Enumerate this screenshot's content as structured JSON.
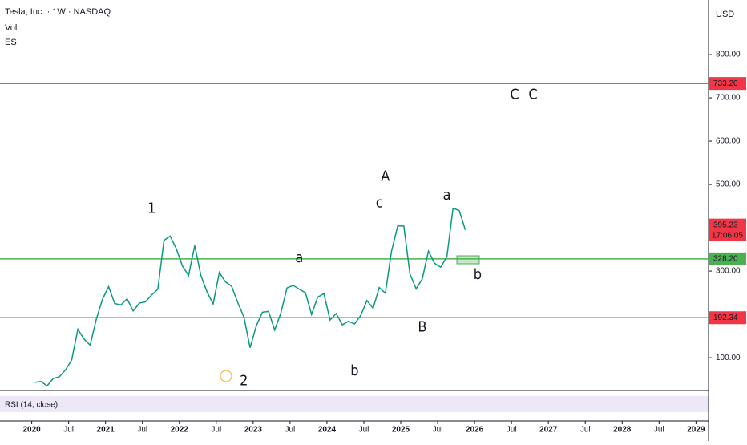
{
  "header": {
    "symbol": "Tesla, Inc. · 1W · NASDAQ",
    "indicators": [
      "Vol",
      "ES"
    ],
    "currency": "USD"
  },
  "chart_data": {
    "type": "line",
    "color": "#089981",
    "x": [
      "2020-01",
      "2020-02",
      "2020-03",
      "2020-04",
      "2020-05",
      "2020-06",
      "2020-07",
      "2020-08",
      "2020-09",
      "2020-10",
      "2020-11",
      "2020-12",
      "2021-01",
      "2021-02",
      "2021-03",
      "2021-04",
      "2021-05",
      "2021-06",
      "2021-07",
      "2021-08",
      "2021-09",
      "2021-10",
      "2021-11",
      "2021-12",
      "2022-01",
      "2022-02",
      "2022-03",
      "2022-04",
      "2022-05",
      "2022-06",
      "2022-07",
      "2022-08",
      "2022-09",
      "2022-10",
      "2022-11",
      "2022-12",
      "2023-01",
      "2023-02",
      "2023-03",
      "2023-04",
      "2023-05",
      "2023-06",
      "2023-07",
      "2023-08",
      "2023-09",
      "2023-10",
      "2023-11",
      "2023-12",
      "2024-01",
      "2024-02",
      "2024-03",
      "2024-04",
      "2024-05",
      "2024-06",
      "2024-07",
      "2024-08",
      "2024-09",
      "2024-10",
      "2024-11",
      "2024-12",
      "2025-01",
      "2025-02",
      "2025-03",
      "2025-04",
      "2025-05",
      "2025-06",
      "2025-07",
      "2025-08",
      "2025-09",
      "2025-10",
      "2025-11"
    ],
    "values": [
      43,
      45,
      35,
      52,
      56,
      72,
      95,
      166,
      143,
      129,
      189,
      235,
      264,
      225,
      222,
      236,
      208,
      226,
      229,
      245,
      258,
      371,
      381,
      352,
      312,
      290,
      359,
      290,
      252,
      224,
      297,
      275,
      265,
      227,
      194,
      123,
      173,
      205,
      207,
      164,
      203,
      261,
      267,
      258,
      250,
      200,
      240,
      248,
      187,
      202,
      176,
      184,
      178,
      198,
      232,
      214,
      262,
      249,
      346,
      404,
      404,
      293,
      259,
      282,
      346,
      318,
      309,
      333,
      445,
      440,
      395
    ],
    "xlim": [
      2019.57,
      2029.17
    ],
    "xticks": [
      2020,
      {
        "value": 2020.5,
        "label": "Jul"
      },
      2021,
      {
        "value": 2021.5,
        "label": "Jul"
      },
      2022,
      {
        "value": 2022.5,
        "label": "Jul"
      },
      2023,
      {
        "value": 2023.5,
        "label": "Jul"
      },
      2024,
      {
        "value": 2024.5,
        "label": "Jul"
      },
      2025,
      {
        "value": 2025.5,
        "label": "Jul"
      },
      2026,
      {
        "value": 2026.5,
        "label": "Jul"
      },
      2027,
      {
        "value": 2027.5,
        "label": "Jul"
      },
      2028,
      {
        "value": 2028.5,
        "label": "Jul"
      },
      2029
    ],
    "ylim": [
      28,
      926
    ],
    "yticks": [
      {
        "value": 100,
        "label": "100.00"
      },
      {
        "value": 300,
        "label": "300.00"
      },
      {
        "value": 500,
        "label": "500.00"
      },
      {
        "value": 600,
        "label": "600.00"
      },
      {
        "value": 700,
        "label": "700.00"
      },
      {
        "value": 800,
        "label": "800.00"
      }
    ],
    "levels": [
      {
        "value": 733.2,
        "label": "733.20",
        "color": "#f23645"
      },
      {
        "value": 328.2,
        "label": "328.20",
        "color": "#4caf50"
      },
      {
        "value": 192.34,
        "label": "192.34",
        "color": "#f23645"
      }
    ],
    "last_price": {
      "value": 395.23,
      "label": "395.23",
      "countdown": "17:06:05",
      "color": "#f23645"
    },
    "annotations": [
      {
        "text": "1",
        "x": "2021-08",
        "y": 444,
        "color": "#000000"
      },
      {
        "text": "2",
        "x": "2022-11",
        "y": 46,
        "color": "#000000"
      },
      {
        "text": "A",
        "x": "2024-10",
        "y": 518,
        "color": "#f57c00"
      },
      {
        "text": "B",
        "x": "2025-04",
        "y": 170,
        "color": "#f57c00"
      },
      {
        "text": "C",
        "x": "2026-07",
        "y": 707,
        "color": "#1b7e2a"
      },
      {
        "text": "C",
        "x": "2026-10",
        "y": 707,
        "color": "#f57c00"
      },
      {
        "text": "a",
        "x": "2023-08",
        "y": 330,
        "color": "#1b7e2a"
      },
      {
        "text": "b",
        "x": "2024-05",
        "y": 69,
        "color": "#1b7e2a"
      },
      {
        "text": "c",
        "x": "2024-09",
        "y": 457,
        "color": "#1b7e2a"
      },
      {
        "text": "a",
        "x": "2025-08",
        "y": 474,
        "color": "#1b7e2a"
      },
      {
        "text": "b",
        "x": "2026-01",
        "y": 291,
        "color": "#1b7e2a"
      }
    ],
    "rsi_label": "RSI (14, close)"
  }
}
